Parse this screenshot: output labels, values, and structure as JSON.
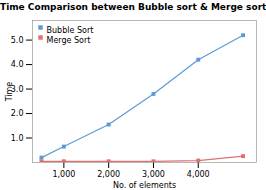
{
  "chart_data": {
    "type": "line",
    "title": "Time Comparison between Bubble sort & Merge sort",
    "xlabel": "No. of elements",
    "ylabel": "Time",
    "x": [
      500,
      1000,
      2000,
      3000,
      4000,
      5000
    ],
    "series": [
      {
        "name": "Bubble Sort",
        "color": "#5b9bd5",
        "marker": "square",
        "values": [
          0.2,
          0.65,
          1.55,
          2.8,
          4.2,
          5.2
        ]
      },
      {
        "name": "Merge Sort",
        "color": "#e07070",
        "marker": "square",
        "values": [
          0.05,
          0.05,
          0.05,
          0.05,
          0.08,
          0.26
        ]
      }
    ],
    "xlim": [
      300,
      5300
    ],
    "ylim": [
      0,
      5.8
    ],
    "xticks": [
      1000,
      2000,
      3000,
      4000
    ],
    "yticks": [
      1,
      2,
      3,
      4,
      5
    ],
    "legend": "upper left"
  }
}
